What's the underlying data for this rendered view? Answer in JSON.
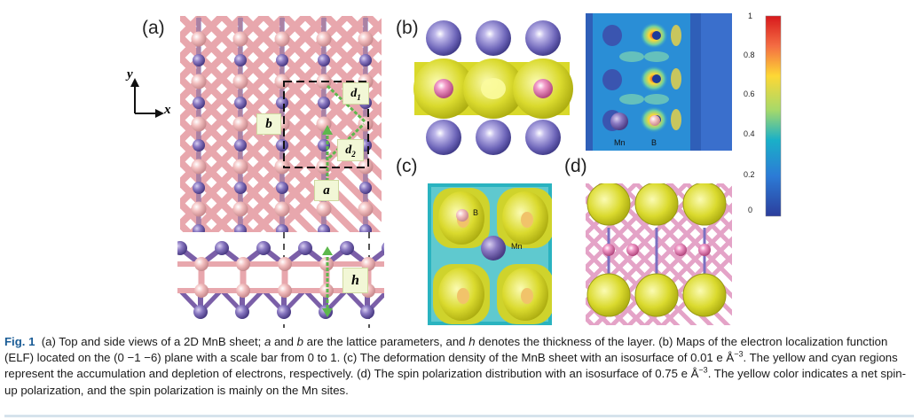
{
  "panels": {
    "a": "(a)",
    "b": "(b)",
    "c": "(c)",
    "d": "(d)"
  },
  "axis": {
    "y": "y",
    "x": "x"
  },
  "lattice_labels": {
    "b": "b",
    "a": "a",
    "d1": "d",
    "d1_sub": "1",
    "d2": "d",
    "d2_sub": "2",
    "h": "h"
  },
  "atom_labels": {
    "mn_b": "Mn",
    "b_b": "B",
    "b_c": "B",
    "mn_c": "Mn"
  },
  "colorbar": {
    "ticks": [
      "1",
      "0.8",
      "0.6",
      "0.4",
      "0.2",
      "0"
    ]
  },
  "caption": {
    "figno": "Fig. 1",
    "line1": "(a) Top and side views of a 2D MnB sheet; ",
    "a_it": "a",
    "and1": " and ",
    "b_it": "b",
    "mid1": " are the lattice parameters, and ",
    "h_it": "h",
    "mid2": " denotes the thickness of the layer. (b) Maps of the electron localization function (ELF) located on the (0 −1 −6) plane with a scale bar from 0 to 1. (c) The deformation density of the MnB sheet with an isosurface of 0.01 e Å",
    "exp1": "−3",
    "mid3": ". The yellow and cyan regions represent the accumulation and depletion of electrons, respectively. (d) The spin polarization distribution with an isosurface of 0.75 e Å",
    "exp2": "−3",
    "end": ". The yellow color indicates a net spin-up polarization, and the spin polarization is mainly on the Mn sites."
  },
  "colors": {
    "boron": "#f0b6b6",
    "mn": "#7d6bb3",
    "bond_pink": "#e8a7ad",
    "bond_purple": "#7b5fa8",
    "caption_fig": "#1a5c96"
  }
}
